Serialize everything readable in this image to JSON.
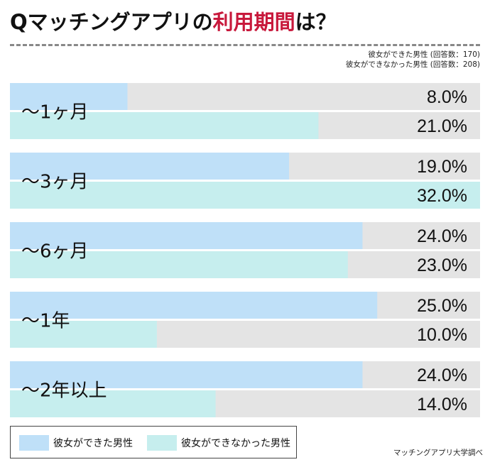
{
  "title": {
    "prefix": "Qマッチングアプリの",
    "highlight": "利用期間",
    "suffix": "は？"
  },
  "sample_notes": [
    "彼女ができた男性 (回答数：170)",
    "彼女ができなかった男性 (回答数：208)"
  ],
  "source": "マッチングアプリ大学調べ",
  "colors": {
    "series_a": "#bfe0f8",
    "series_b": "#c6eeee",
    "track": "#e4e4e4",
    "highlight": "#c8193c"
  },
  "chart_data": {
    "type": "bar",
    "orientation": "horizontal",
    "categories": [
      "〜1ヶ月",
      "〜3ヶ月",
      "〜6ヶ月",
      "〜1年",
      "〜2年以上"
    ],
    "series": [
      {
        "name": "彼女ができた男性",
        "values": [
          8.0,
          19.0,
          24.0,
          25.0,
          24.0
        ]
      },
      {
        "name": "彼女ができなかった男性",
        "values": [
          21.0,
          32.0,
          23.0,
          10.0,
          14.0
        ]
      }
    ],
    "value_labels": [
      [
        "8.0%",
        "19.0%",
        "24.0%",
        "25.0%",
        "24.0%"
      ],
      [
        "21.0%",
        "32.0%",
        "23.0%",
        "10.0%",
        "14.0%"
      ]
    ],
    "xlim": [
      0,
      32
    ],
    "legend_position": "bottom-left",
    "grid": false
  }
}
